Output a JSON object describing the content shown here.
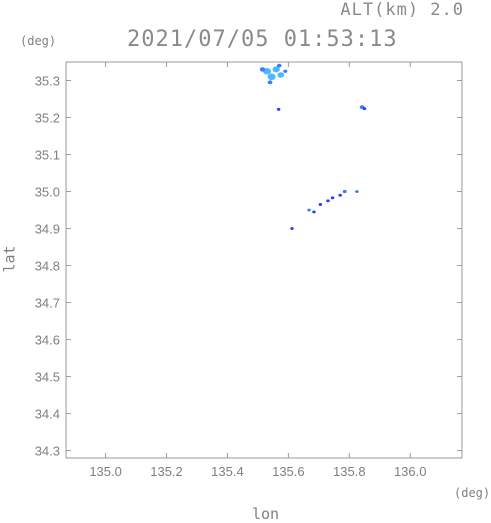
{
  "header": {
    "altitude_label": "ALT(km) 2.0",
    "timestamp": "2021/07/05 01:53:13"
  },
  "chart_data": {
    "type": "scatter",
    "title": "2021/07/05 01:53:13",
    "subtitle": "ALT(km) 2.0",
    "xlabel": "lon",
    "ylabel": "lat",
    "x_unit": "(deg)",
    "y_unit": "(deg)",
    "xlim": [
      134.87,
      136.17
    ],
    "ylim": [
      34.28,
      35.35
    ],
    "x_ticks": [
      "135.0",
      "135.2",
      "135.4",
      "135.6",
      "135.8",
      "136.0"
    ],
    "x_tick_values": [
      135.0,
      135.2,
      135.4,
      135.6,
      135.8,
      136.0
    ],
    "y_ticks": [
      "34.3",
      "34.4",
      "34.5",
      "34.6",
      "34.7",
      "34.8",
      "34.9",
      "35.0",
      "35.1",
      "35.2",
      "35.3"
    ],
    "y_tick_values": [
      34.3,
      34.4,
      34.5,
      34.6,
      34.7,
      34.8,
      34.9,
      35.0,
      35.1,
      35.2,
      35.3
    ],
    "grid": false,
    "colors": {
      "echo_light": "#4db8ff",
      "echo_mid": "#3a7bff",
      "echo_dark": "#2a3cff",
      "axis": "#9a9a9a"
    },
    "echoes": [
      {
        "lon": 135.53,
        "lat": 35.325,
        "intensity": "light",
        "r": 0.012
      },
      {
        "lon": 135.545,
        "lat": 35.31,
        "intensity": "light",
        "r": 0.012
      },
      {
        "lon": 135.56,
        "lat": 35.33,
        "intensity": "light",
        "r": 0.011
      },
      {
        "lon": 135.575,
        "lat": 35.315,
        "intensity": "light",
        "r": 0.01
      },
      {
        "lon": 135.515,
        "lat": 35.33,
        "intensity": "mid",
        "r": 0.008
      },
      {
        "lon": 135.54,
        "lat": 35.295,
        "intensity": "mid",
        "r": 0.007
      },
      {
        "lon": 135.57,
        "lat": 35.34,
        "intensity": "mid",
        "r": 0.007
      },
      {
        "lon": 135.59,
        "lat": 35.325,
        "intensity": "mid",
        "r": 0.006
      },
      {
        "lon": 135.568,
        "lat": 35.222,
        "intensity": "dark",
        "r": 0.005
      },
      {
        "lon": 135.842,
        "lat": 35.228,
        "intensity": "mid",
        "r": 0.007
      },
      {
        "lon": 135.85,
        "lat": 35.224,
        "intensity": "dark",
        "r": 0.005
      },
      {
        "lon": 135.785,
        "lat": 35.0,
        "intensity": "mid",
        "r": 0.006
      },
      {
        "lon": 135.825,
        "lat": 35.0,
        "intensity": "mid",
        "r": 0.005
      },
      {
        "lon": 135.77,
        "lat": 34.99,
        "intensity": "dark",
        "r": 0.004
      },
      {
        "lon": 135.745,
        "lat": 34.983,
        "intensity": "dark",
        "r": 0.003
      },
      {
        "lon": 135.73,
        "lat": 34.975,
        "intensity": "dark",
        "r": 0.003
      },
      {
        "lon": 135.705,
        "lat": 34.965,
        "intensity": "dark",
        "r": 0.003
      },
      {
        "lon": 135.668,
        "lat": 34.95,
        "intensity": "mid",
        "r": 0.004
      },
      {
        "lon": 135.684,
        "lat": 34.945,
        "intensity": "dark",
        "r": 0.003
      },
      {
        "lon": 135.612,
        "lat": 34.9,
        "intensity": "dark",
        "r": 0.003
      }
    ]
  }
}
